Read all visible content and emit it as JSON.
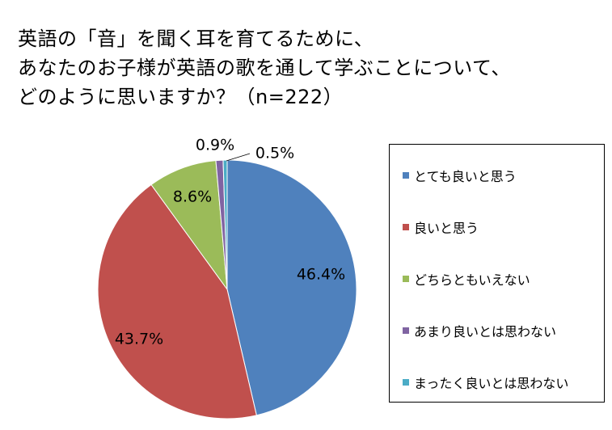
{
  "chart_data": {
    "type": "pie",
    "title_lines": [
      "英語の「音」を聞く耳を育てるために、",
      "あなたのお子様が英語の歌を通して学ぶことについて、",
      "どのように思いますか？（n=222）"
    ],
    "categories": [
      "とても良いと思う",
      "良いと思う",
      "どちらともいえない",
      "あまり良いとは思わない",
      "まったく良いとは思わない"
    ],
    "values": [
      46.4,
      43.7,
      8.6,
      0.9,
      0.5
    ],
    "data_labels": [
      "46.4%",
      "43.7%",
      "8.6%",
      "0.9%",
      "0.5%"
    ],
    "colors": [
      "#4f81bd",
      "#c0504d",
      "#9bbb59",
      "#8064a2",
      "#4bacc6"
    ],
    "start_angle": "12 o'clock",
    "direction": "clockwise",
    "legend_position": "right"
  }
}
